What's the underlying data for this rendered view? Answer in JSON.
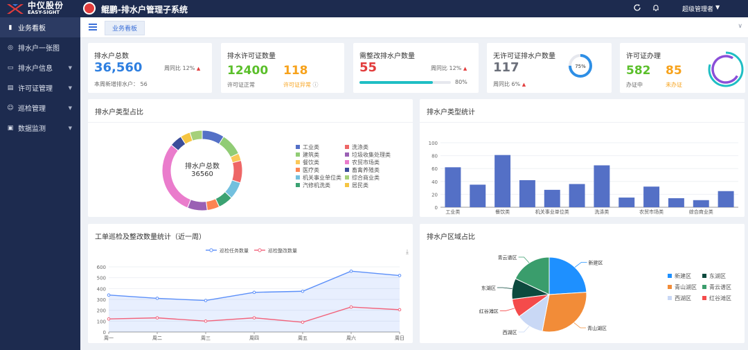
{
  "header": {
    "logo_cn": "中仪股份",
    "logo_en": "EASY-SIGHT",
    "app_title": "鲲鹏-排水户管理子系统",
    "user": "超级管理者"
  },
  "sidebar": {
    "items": [
      {
        "label": "业务看板",
        "icon": "chart-bar-icon",
        "active": true,
        "has_children": false
      },
      {
        "label": "排水户一张图",
        "icon": "map-pin-icon",
        "active": false,
        "has_children": false
      },
      {
        "label": "排水户信息",
        "icon": "folder-icon",
        "active": false,
        "has_children": true
      },
      {
        "label": "许可证管理",
        "icon": "card-icon",
        "active": false,
        "has_children": true
      },
      {
        "label": "巡检管理",
        "icon": "person-icon",
        "active": false,
        "has_children": true
      },
      {
        "label": "数据监测",
        "icon": "monitor-icon",
        "active": false,
        "has_children": true
      }
    ]
  },
  "tabs": {
    "active": "业务看板"
  },
  "kpis": {
    "households": {
      "title": "排水户总数",
      "value": "36,560",
      "yoy": "周同比 12%",
      "sub_label": "本周新增排水户：",
      "sub_value": "56"
    },
    "permits": {
      "title": "排水许可证数量",
      "normal_value": "12400",
      "normal_label": "许可证正常",
      "abnormal_value": "118",
      "abnormal_label": "许可证异常"
    },
    "rectify": {
      "title": "需整改排水户数量",
      "value": "55",
      "yoy": "周同比 12%",
      "progress_percent": 80,
      "progress_label": "80%"
    },
    "no_permit": {
      "title": "无许可证排水户数量",
      "value": "117",
      "yoy": "周同比 6%",
      "ring_percent": 75,
      "ring_label": "75%"
    },
    "permit_process": {
      "title": "许可证办理",
      "processing_value": "582",
      "processing_label": "办证中",
      "pending_value": "85",
      "pending_label": "未办证"
    }
  },
  "colors": {
    "blue": "#2e7fe0",
    "green": "#5bbf2b",
    "orange": "#f7a21b",
    "red": "#e23c3c",
    "gray": "#6b6f7a",
    "teal": "#1fbec4",
    "purple": "#8b4fd8",
    "bar": "#5470c6"
  },
  "chart_data": [
    {
      "id": "type-ratio",
      "type": "pie",
      "title": "排水户类型占比",
      "center_label": "排水户总数",
      "center_value": "36560",
      "legend": [
        {
          "name": "工业类",
          "color": "#5470c6"
        },
        {
          "name": "洗涤类",
          "color": "#ee6666"
        },
        {
          "name": "建筑类",
          "color": "#91cc75"
        },
        {
          "name": "垃圾收集处理类",
          "color": "#9a60b4"
        },
        {
          "name": "餐饮类",
          "color": "#fac858"
        },
        {
          "name": "农贸市场类",
          "color": "#ea7ccc"
        },
        {
          "name": "医疗类",
          "color": "#fc8452"
        },
        {
          "name": "畜禽养殖类",
          "color": "#3b4d9a"
        },
        {
          "name": "机关事业单位类",
          "color": "#73c0de"
        },
        {
          "name": "综合商业类",
          "color": "#a5d07a"
        },
        {
          "name": "汽修机洗类",
          "color": "#3ba272"
        },
        {
          "name": "居民类",
          "color": "#f5c542"
        }
      ],
      "slices": [
        {
          "name": "工业类",
          "value": 9,
          "color": "#5470c6"
        },
        {
          "name": "建筑类",
          "value": 9,
          "color": "#91cc75"
        },
        {
          "name": "餐饮类",
          "value": 3,
          "color": "#fac858"
        },
        {
          "name": "洗涤类",
          "value": 9,
          "color": "#ee6666"
        },
        {
          "name": "机关事业单位类",
          "value": 7,
          "color": "#73c0de"
        },
        {
          "name": "汽修机洗类",
          "value": 6,
          "color": "#3ba272"
        },
        {
          "name": "医疗类",
          "value": 5,
          "color": "#fc8452"
        },
        {
          "name": "垃圾收集处理类",
          "value": 8,
          "color": "#9a60b4"
        },
        {
          "name": "农贸市场类",
          "value": 30,
          "color": "#ea7ccc"
        },
        {
          "name": "畜禽养殖类",
          "value": 5,
          "color": "#3b4d9a"
        },
        {
          "name": "居民类",
          "value": 4,
          "color": "#f5c542"
        },
        {
          "name": "综合商业类",
          "value": 5,
          "color": "#a5d07a"
        }
      ]
    },
    {
      "id": "type-stats",
      "type": "bar",
      "title": "排水户类型统计",
      "categories": [
        "工业类",
        "",
        "餐饮类",
        "",
        "机关事业单位类",
        "",
        "洗涤类",
        "",
        "农贸市场类",
        "",
        "综合商业类",
        ""
      ],
      "values": [
        62,
        35,
        81,
        42,
        27,
        36,
        65,
        15,
        32,
        14,
        11,
        25
      ],
      "ylim": [
        0,
        100
      ],
      "yticks": [
        0,
        20,
        40,
        60,
        80,
        100
      ],
      "grid": true
    },
    {
      "id": "weekly-inspection",
      "type": "line",
      "title": "工单巡检及整改数量统计（近一周）",
      "categories": [
        "周一",
        "周二",
        "周三",
        "周四",
        "周五",
        "周六",
        "周日"
      ],
      "series": [
        {
          "name": "巡检任务数量",
          "values": [
            340,
            310,
            290,
            365,
            375,
            560,
            520
          ],
          "color": "#5b8ff9",
          "area": true
        },
        {
          "name": "巡检整改数量",
          "values": [
            120,
            130,
            100,
            130,
            90,
            230,
            205
          ],
          "color": "#f2637b",
          "area": false
        }
      ],
      "ylim": [
        0,
        600
      ],
      "yticks": [
        0,
        100,
        200,
        300,
        400,
        500,
        600
      ],
      "legend_position": "top-center",
      "grid": true
    },
    {
      "id": "region-ratio",
      "type": "pie",
      "title": "排水户区域占比",
      "slices": [
        {
          "name": "新建区",
          "value": 24,
          "color": "#1e90ff"
        },
        {
          "name": "青山湖区",
          "value": 29,
          "color": "#f28c38"
        },
        {
          "name": "西湖区",
          "value": 12,
          "color": "#c9d8f5"
        },
        {
          "name": "红谷滩区",
          "value": 8,
          "color": "#f44b4b"
        },
        {
          "name": "东湖区",
          "value": 9,
          "color": "#0d4a3e"
        },
        {
          "name": "青云谱区",
          "value": 18,
          "color": "#3a9d6c"
        }
      ],
      "legend": [
        {
          "name": "新建区",
          "color": "#1e90ff"
        },
        {
          "name": "东湖区",
          "color": "#0d4a3e"
        },
        {
          "name": "青山湖区",
          "color": "#f28c38"
        },
        {
          "name": "青云谱区",
          "color": "#3a9d6c"
        },
        {
          "name": "西湖区",
          "color": "#c9d8f5"
        },
        {
          "name": "红谷滩区",
          "color": "#f44b4b"
        }
      ]
    }
  ]
}
